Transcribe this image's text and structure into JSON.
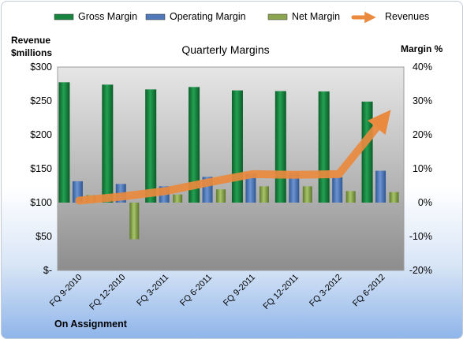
{
  "chart_data": {
    "type": "bar",
    "title": "Quarterly Margins",
    "company": "On Assignment",
    "categories": [
      "FQ 9-2010",
      "FQ 12-2010",
      "FQ 3-2011",
      "FQ 6-2011",
      "FQ 9-2011",
      "FQ 12-2011",
      "FQ 3-2012",
      "FQ 6-2012"
    ],
    "series": [
      {
        "name": "Gross Margin",
        "axis": "right",
        "color": "#17853f",
        "values": [
          35.5,
          34.8,
          33.4,
          34.1,
          33.1,
          32.9,
          32.8,
          29.8
        ]
      },
      {
        "name": "Operating Margin",
        "axis": "right",
        "color": "#4f79b9",
        "values": [
          6.3,
          5.5,
          4.8,
          7.6,
          8.5,
          8.8,
          7.5,
          9.4
        ]
      },
      {
        "name": "Net Margin",
        "axis": "right",
        "color": "#8ca54f",
        "values": [
          2.2,
          -10.8,
          2.4,
          3.9,
          4.8,
          4.8,
          3.4,
          3.1
        ]
      },
      {
        "name": "Revenues",
        "axis": "left",
        "type": "line",
        "color": "#e98a3e",
        "values": [
          103,
          109,
          117,
          130,
          142,
          141,
          142,
          221
        ]
      }
    ],
    "y_left": {
      "label": "Revenue $millions",
      "min": 0,
      "max": 300,
      "ticks": [
        "$-",
        "$50",
        "$100",
        "$150",
        "$200",
        "$250",
        "$300"
      ]
    },
    "y_right": {
      "label": "Margin %",
      "min": -20,
      "max": 40,
      "ticks": [
        "-20%",
        "-10%",
        "0%",
        "10%",
        "20%",
        "30%",
        "40%"
      ]
    },
    "legend_position": "top",
    "grid": false
  }
}
